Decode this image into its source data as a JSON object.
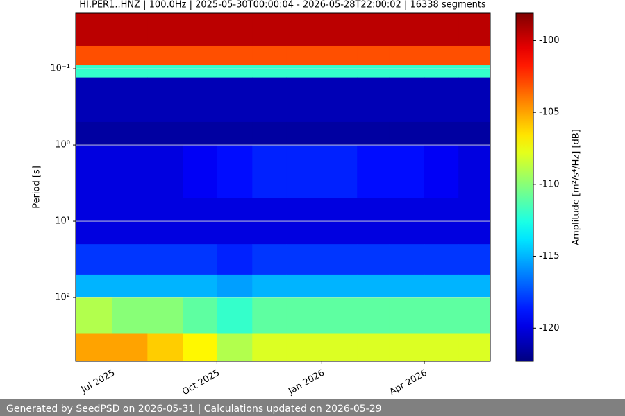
{
  "chart_data": {
    "type": "spectrogram",
    "title": "HI.PER1..HNZ | 100.0Hz | 2025-05-30T00:00:04 - 2026-05-28T22:00:02 | 16338 segments",
    "ylabel": "Period [s]",
    "colorbar_label": "Amplitude [m²/s⁴/Hz] [dB]",
    "yscale": "log",
    "y_inverted": true,
    "ylim": [
      0.0187,
      686
    ],
    "yticks": [
      {
        "value": 0.1,
        "label": "10⁻¹"
      },
      {
        "value": 1,
        "label": "10⁰"
      },
      {
        "value": 10,
        "label": "10¹"
      },
      {
        "value": 100,
        "label": "10²"
      }
    ],
    "grid": true,
    "xlim": [
      "2025-05-30T00:00:04",
      "2026-05-28T22:00:02"
    ],
    "xticks": [
      {
        "value": "2025-07-01",
        "label": "Jul 2025"
      },
      {
        "value": "2025-10-01",
        "label": "Oct 2025"
      },
      {
        "value": "2026-01-01",
        "label": "Jan 2026"
      },
      {
        "value": "2026-04-01",
        "label": "Apr 2026"
      }
    ],
    "time_edges": [
      "2025-05-30T00:00:04",
      "2025-07-01",
      "2025-08-01",
      "2025-09-01",
      "2025-10-01",
      "2025-11-01",
      "2025-12-01",
      "2026-01-01",
      "2026-02-01",
      "2026-03-01",
      "2026-04-01",
      "2026-05-01",
      "2026-05-28T22:00:02"
    ],
    "period_edges": [
      0.0187,
      0.05,
      0.09,
      0.13,
      0.5,
      1,
      5,
      20,
      50,
      100,
      300,
      686
    ],
    "values": [
      [
        -99.5,
        -99.5,
        -99.5,
        -99.5,
        -99.5,
        -99.5,
        -99.5,
        -99.5,
        -99.5,
        -99.5,
        -99.5,
        -99.5
      ],
      [
        -103,
        -103,
        -103,
        -103,
        -103,
        -103,
        -103,
        -103,
        -103,
        -103,
        -103,
        -103
      ],
      [
        -112,
        -112,
        -112,
        -112,
        -112,
        -112,
        -112,
        -112,
        -112,
        -112,
        -112,
        -112
      ],
      [
        -121,
        -121,
        -121,
        -121,
        -121,
        -121,
        -121,
        -121,
        -121,
        -121,
        -121,
        -121
      ],
      [
        -121.5,
        -121.5,
        -121.5,
        -121.5,
        -121.5,
        -121.5,
        -121.5,
        -121.5,
        -121.5,
        -121.5,
        -121.5,
        -121.5
      ],
      [
        -120,
        -120,
        -120,
        -119.5,
        -119,
        -118.5,
        -118.5,
        -118.5,
        -119,
        -119,
        -119.5,
        -120
      ],
      [
        -120,
        -120,
        -120,
        -120,
        -120,
        -120,
        -120,
        -120,
        -120,
        -120,
        -120,
        -120
      ],
      [
        -118,
        -118,
        -118,
        -118,
        -118.5,
        -118,
        -118,
        -118,
        -118,
        -118,
        -118,
        -118
      ],
      [
        -115,
        -115,
        -115,
        -115,
        -115.5,
        -115,
        -115,
        -115,
        -115,
        -115,
        -115,
        -115
      ],
      [
        -109,
        -110,
        -110,
        -111,
        -112,
        -111,
        -111,
        -111,
        -111,
        -111,
        -111,
        -111
      ],
      [
        -105,
        -105,
        -106,
        -107,
        -109,
        -108,
        -108,
        -108,
        -108,
        -108,
        -108,
        -108
      ]
    ],
    "clim": [
      -122.3,
      -98.1
    ],
    "cticks": [
      -100,
      -105,
      -110,
      -115,
      -120
    ],
    "colormap": "jet",
    "footer": "Generated by SeedPSD on 2026-05-31 | Calculations updated on 2026-05-29"
  }
}
